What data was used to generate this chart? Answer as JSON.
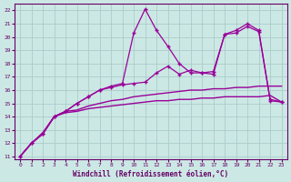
{
  "background_color": "#cce8e4",
  "grid_color": "#aacccc",
  "line_color": "#990099",
  "xlabel": "Windchill (Refroidissement éolien,°C)",
  "xlim": [
    -0.5,
    23.5
  ],
  "ylim": [
    10.8,
    22.5
  ],
  "yticks": [
    11,
    12,
    13,
    14,
    15,
    16,
    17,
    18,
    19,
    20,
    21,
    22
  ],
  "xticks": [
    0,
    1,
    2,
    3,
    4,
    5,
    6,
    7,
    8,
    9,
    10,
    11,
    12,
    13,
    14,
    15,
    16,
    17,
    18,
    19,
    20,
    21,
    22,
    23
  ],
  "series": [
    {
      "x": [
        0,
        1,
        2,
        3,
        4,
        5,
        6,
        7,
        8,
        9,
        10,
        11,
        12,
        13,
        14,
        15,
        16,
        17,
        18,
        19,
        20,
        21,
        22,
        23
      ],
      "y": [
        11.0,
        12.0,
        12.7,
        14.0,
        14.3,
        14.4,
        14.6,
        14.7,
        14.8,
        14.9,
        15.0,
        15.1,
        15.2,
        15.2,
        15.3,
        15.3,
        15.4,
        15.4,
        15.5,
        15.5,
        15.5,
        15.5,
        15.6,
        15.1
      ],
      "marker": null,
      "linestyle": "-",
      "linewidth": 1.0
    },
    {
      "x": [
        0,
        1,
        2,
        3,
        4,
        5,
        6,
        7,
        8,
        9,
        10,
        11,
        12,
        13,
        14,
        15,
        16,
        17,
        18,
        19,
        20,
        21,
        22,
        23
      ],
      "y": [
        11.0,
        12.0,
        12.8,
        14.0,
        14.4,
        14.5,
        14.8,
        15.0,
        15.2,
        15.3,
        15.5,
        15.6,
        15.7,
        15.8,
        15.9,
        16.0,
        16.0,
        16.1,
        16.1,
        16.2,
        16.2,
        16.3,
        16.3,
        16.3
      ],
      "marker": null,
      "linestyle": "-",
      "linewidth": 1.0
    },
    {
      "x": [
        0,
        1,
        2,
        3,
        4,
        5,
        6,
        7,
        8,
        9,
        10,
        11,
        12,
        13,
        14,
        15,
        16,
        17,
        18,
        19,
        20,
        21,
        22,
        23
      ],
      "y": [
        11.0,
        12.0,
        12.7,
        14.0,
        14.4,
        15.0,
        15.5,
        16.0,
        16.2,
        16.4,
        16.5,
        16.6,
        17.3,
        17.8,
        17.2,
        17.5,
        17.3,
        17.2,
        20.2,
        20.3,
        20.8,
        20.4,
        15.2,
        15.1
      ],
      "marker": "+",
      "linestyle": "-",
      "linewidth": 0.9
    },
    {
      "x": [
        0,
        1,
        2,
        3,
        4,
        5,
        6,
        7,
        8,
        9,
        10,
        11,
        12,
        13,
        14,
        15,
        16,
        17,
        18,
        19,
        20,
        21,
        22,
        23
      ],
      "y": [
        11.0,
        12.0,
        12.7,
        14.0,
        14.4,
        15.0,
        15.5,
        16.0,
        16.3,
        16.5,
        20.3,
        22.1,
        20.5,
        19.3,
        18.0,
        17.3,
        17.3,
        17.4,
        20.2,
        20.5,
        21.0,
        20.5,
        15.3,
        15.1
      ],
      "marker": "+",
      "linestyle": "-",
      "linewidth": 0.9
    }
  ]
}
